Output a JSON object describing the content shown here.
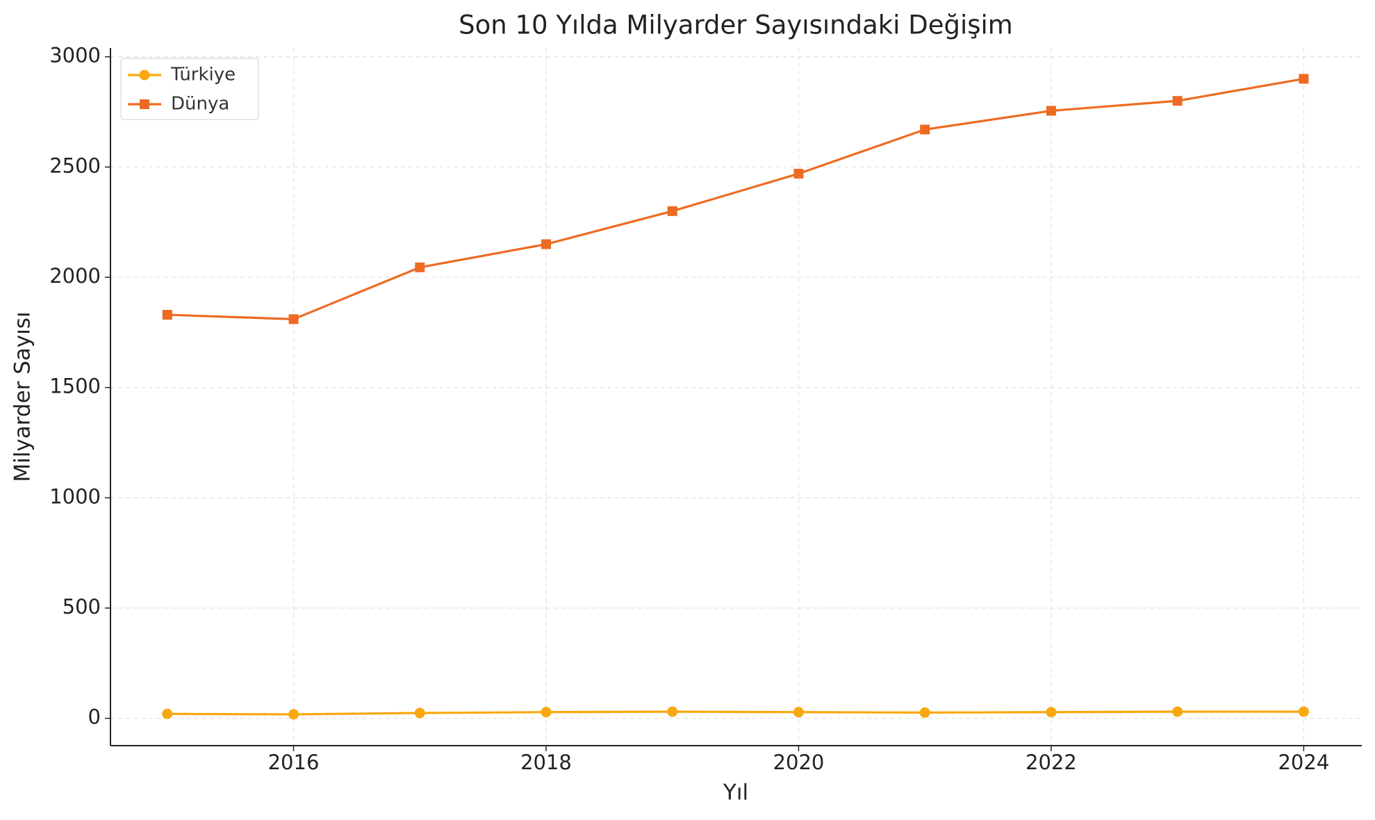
{
  "chart_data": {
    "type": "line",
    "title": "Son 10 Yılda Milyarder Sayısındaki Değişim",
    "x_label": "Yıl",
    "y_label": "Milyarder Sayısı",
    "x": [
      2015,
      2016,
      2017,
      2018,
      2019,
      2020,
      2021,
      2022,
      2023,
      2024
    ],
    "series": [
      {
        "name": "Türkiye",
        "color": "#f9a80f",
        "marker": "circle",
        "values": [
          20,
          18,
          24,
          28,
          30,
          28,
          26,
          28,
          30,
          30
        ]
      },
      {
        "name": "Dünya",
        "color": "#ee6a22",
        "marker": "square",
        "values": [
          1830,
          1810,
          2045,
          2150,
          2300,
          2470,
          2670,
          2755,
          2800,
          2900
        ]
      }
    ],
    "xlim": [
      2014.55,
      2024.46
    ],
    "xticks": [
      2016,
      2018,
      2020,
      2022,
      2024
    ],
    "ylim": [
      -124,
      3040
    ],
    "yticks": [
      0,
      500,
      1000,
      1500,
      2000,
      2500,
      3000
    ],
    "grid": true,
    "legend": "upper left"
  }
}
